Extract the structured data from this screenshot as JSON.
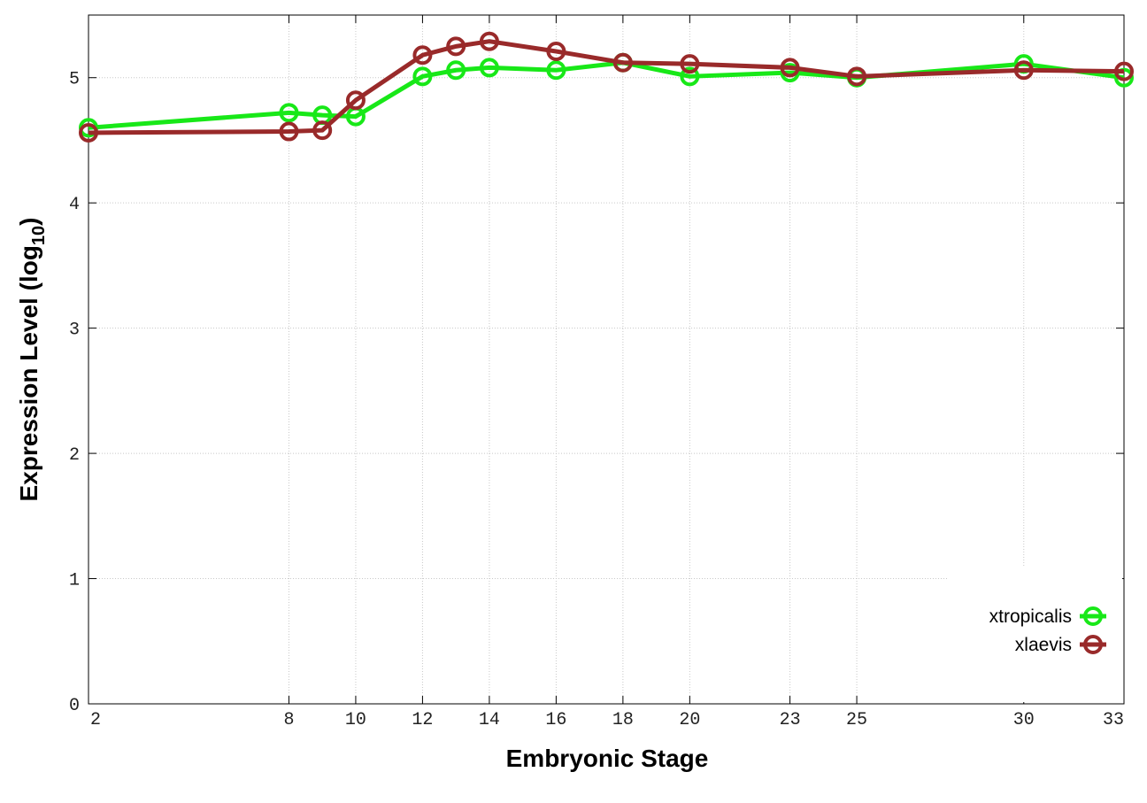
{
  "chart_data": {
    "type": "line",
    "x_label": "Embryonic Stage",
    "y_label": [
      "Expression Level (log",
      "10",
      ")"
    ],
    "x": [
      2,
      8,
      9,
      10,
      12,
      13,
      14,
      16,
      18,
      20,
      23,
      25,
      30,
      33
    ],
    "series": [
      {
        "name": "xtropicalis",
        "color": "#18e818",
        "values": [
          4.6,
          4.72,
          4.7,
          4.69,
          5.01,
          5.06,
          5.08,
          5.06,
          5.12,
          5.01,
          5.04,
          5.0,
          5.11,
          5.0
        ]
      },
      {
        "name": "xlaevis",
        "color": "#992a2a",
        "values": [
          4.56,
          4.57,
          4.58,
          4.82,
          5.18,
          5.25,
          5.29,
          5.21,
          5.12,
          5.11,
          5.08,
          5.01,
          5.06,
          5.05
        ]
      }
    ],
    "xlim": [
      2,
      33
    ],
    "xticks": [
      2,
      8,
      10,
      12,
      14,
      16,
      18,
      20,
      23,
      25,
      30,
      33
    ],
    "ylim": [
      0,
      5.5
    ],
    "yticks": [
      0,
      1,
      2,
      3,
      4,
      5
    ],
    "grid": true,
    "legend_position": "lower right"
  }
}
